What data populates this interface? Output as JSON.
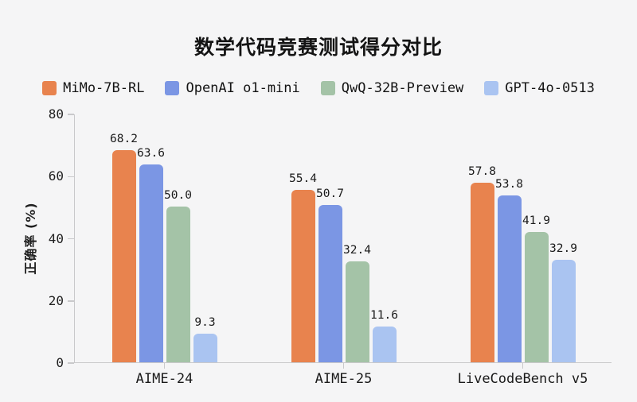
{
  "title": "数学代码竞赛测试得分对比",
  "colors": {
    "background": "#f5f5f6",
    "axis": "#c9c9cb",
    "text": "#141414",
    "series_orange": "#e8834e",
    "series_blue": "#7b96e4",
    "series_green": "#a4c3a7",
    "series_lightblue": "#aac4f1"
  },
  "legend": [
    {
      "label": "MiMo-7B-RL",
      "color": "#e8834e"
    },
    {
      "label": "OpenAI o1-mini",
      "color": "#7b96e4"
    },
    {
      "label": "QwQ-32B-Preview",
      "color": "#a4c3a7"
    },
    {
      "label": "GPT-4o-0513",
      "color": "#aac4f1"
    }
  ],
  "chart_data": {
    "type": "bar",
    "title": "数学代码竞赛测试得分对比",
    "categories": [
      "AIME-24",
      "AIME-25",
      "LiveCodeBench v5"
    ],
    "series": [
      {
        "name": "MiMo-7B-RL",
        "color": "#e8834e",
        "values": [
          68.2,
          55.4,
          57.8
        ]
      },
      {
        "name": "OpenAI o1-mini",
        "color": "#7b96e4",
        "values": [
          63.6,
          50.7,
          53.8
        ]
      },
      {
        "name": "QwQ-32B-Preview",
        "color": "#a4c3a7",
        "values": [
          50.0,
          32.4,
          41.9
        ]
      },
      {
        "name": "GPT-4o-0513",
        "color": "#aac4f1",
        "values": [
          9.3,
          11.6,
          32.9
        ]
      }
    ],
    "xlabel": "",
    "ylabel": "正确率 (%)",
    "ylim": [
      0,
      80
    ],
    "yticks": [
      0,
      20,
      40,
      60,
      80
    ],
    "grid": false,
    "legend_position": "top",
    "bar_labels_decimals": 1
  }
}
